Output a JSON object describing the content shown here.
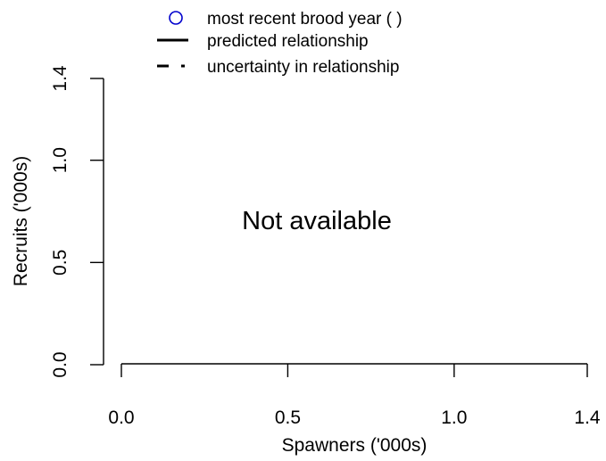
{
  "chart_data": {
    "type": "scatter",
    "title": "",
    "xlabel": "Spawners ('000s)",
    "ylabel": "Recruits ('000s)",
    "xlim": [
      0,
      1.4
    ],
    "ylim": [
      0,
      1.4
    ],
    "x_ticks": [
      "0.0",
      "0.5",
      "1.0",
      "1.4"
    ],
    "y_ticks": [
      "0.0",
      "0.5",
      "1.0",
      "1.4"
    ],
    "series": [],
    "message": "Not available",
    "legend": {
      "placement": "top-center",
      "entries": [
        {
          "label": "most recent brood year ( )",
          "symbol": "open-circle",
          "color": "#0000CD"
        },
        {
          "label": "predicted relationship",
          "symbol": "solid-line",
          "color": "#000000"
        },
        {
          "label": "uncertainty in relationship",
          "symbol": "dash-dot-line",
          "color": "#000000"
        }
      ]
    },
    "grid": false
  }
}
